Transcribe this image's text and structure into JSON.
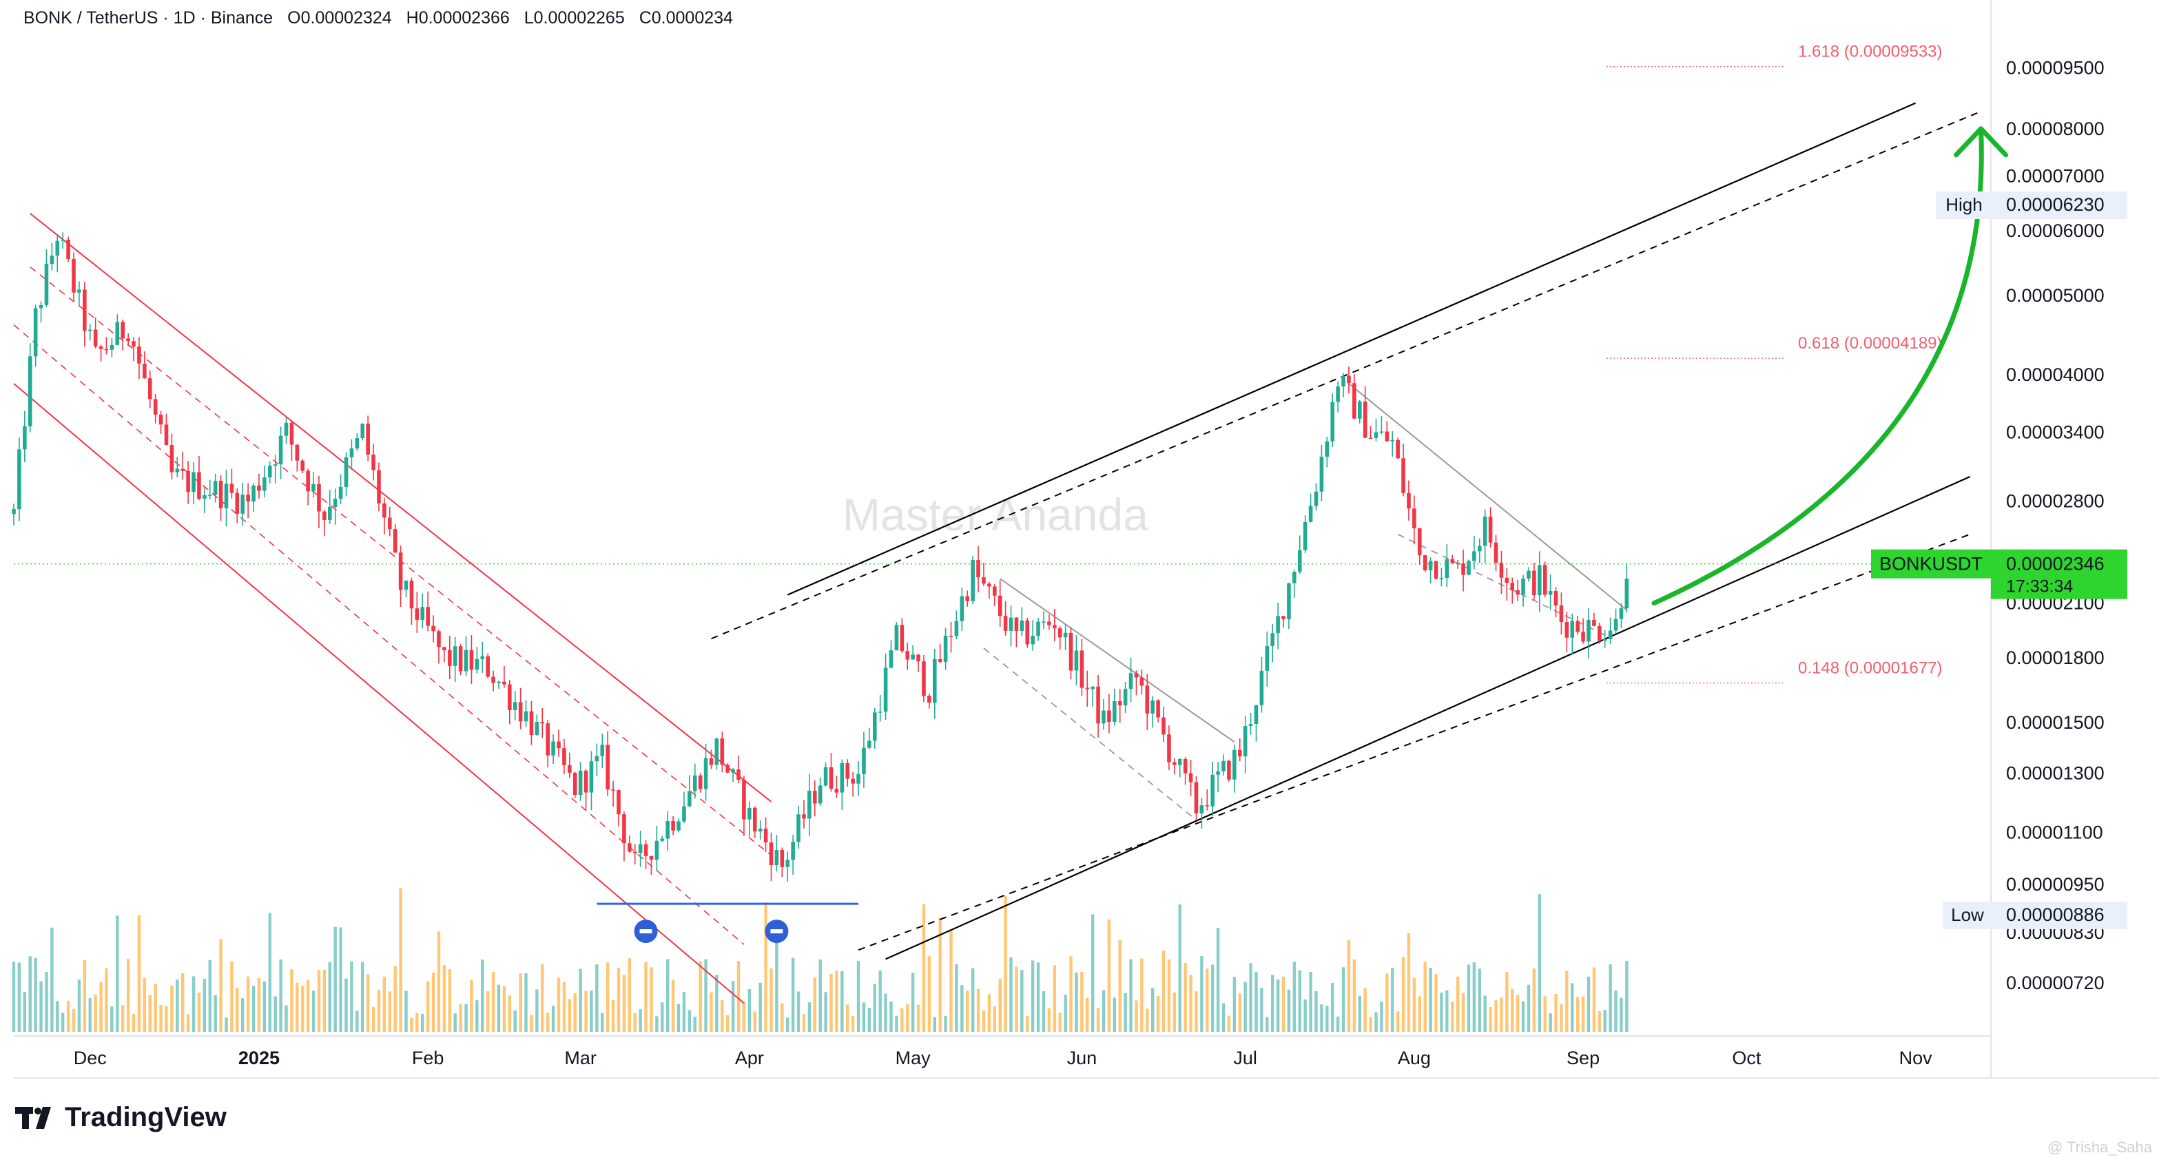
{
  "header": {
    "symbol": "BONK / TetherUS · 1D · Binance",
    "o_label": "O",
    "o_value": "0.00002324",
    "h_label": "H",
    "h_value": "0.00002366",
    "l_label": "L",
    "l_value": "0.00002265",
    "c_label": "C",
    "c_value": "0.0000234"
  },
  "watermark": "Master Ananda",
  "brand": {
    "name": "TradingView"
  },
  "credit": "@ Trisha_Saha",
  "colors": {
    "up": "#22ab94",
    "down": "#f23645",
    "volume_up": "#26a69a",
    "volume_down": "#ff9800",
    "channel_red": "#f23645",
    "channel_black": "#000000",
    "arrow_green": "#19b52b",
    "support_blue": "#2962ff",
    "price_tag": "#2ed52e",
    "fib": "#f23645"
  },
  "price_axis": {
    "ticks": [
      "0.00009500",
      "0.00008000",
      "0.00007000",
      "0.00006000",
      "0.00005000",
      "0.00004000",
      "0.00003400",
      "0.00002800",
      "0.00002100",
      "0.00001800",
      "0.00001500",
      "0.00001300",
      "0.00001100",
      "0.00000950",
      "0.00000830",
      "0.00000720"
    ],
    "high_label": "High",
    "high_value": "0.00006230",
    "low_label": "Low",
    "low_value": "0.00000886",
    "current_symbol": "BONKUSDT",
    "current_value": "0.00002346",
    "countdown": "17:33:34"
  },
  "fib_levels": [
    {
      "label": "1.618 (0.00009533)",
      "value": 9.533e-05
    },
    {
      "label": "0.618 (0.00004189)",
      "value": 4.189e-05
    },
    {
      "label": "0.148 (0.00001677)",
      "value": 1.677e-05
    }
  ],
  "chart_data": {
    "type": "candlestick",
    "scale": "log",
    "ylim": [
      6.2e-06,
      0.000115
    ],
    "x_ticks": [
      "Dec",
      "2025",
      "Feb",
      "Mar",
      "Apr",
      "May",
      "Jun",
      "Jul",
      "Aug",
      "Sep",
      "Oct",
      "Nov"
    ],
    "x_ticks_bold": [
      "2025"
    ],
    "trend": [
      {
        "date": "2024-11-17",
        "price": 2.7e-05
      },
      {
        "date": "2024-11-21",
        "price": 4.7e-05
      },
      {
        "date": "2024-11-25",
        "price": 5.95e-05
      },
      {
        "date": "2024-12-02",
        "price": 4.2e-05
      },
      {
        "date": "2024-12-08",
        "price": 4.6e-05
      },
      {
        "date": "2024-12-16",
        "price": 3e-05
      },
      {
        "date": "2024-12-23",
        "price": 2.9e-05
      },
      {
        "date": "2024-12-30",
        "price": 2.8e-05
      },
      {
        "date": "2025-01-06",
        "price": 3.4e-05
      },
      {
        "date": "2025-01-13",
        "price": 2.7e-05
      },
      {
        "date": "2025-01-20",
        "price": 3.4e-05
      },
      {
        "date": "2025-01-27",
        "price": 2.2e-05
      },
      {
        "date": "2025-02-04",
        "price": 1.8e-05
      },
      {
        "date": "2025-02-12",
        "price": 1.75e-05
      },
      {
        "date": "2025-02-20",
        "price": 1.5e-05
      },
      {
        "date": "2025-02-28",
        "price": 1.25e-05
      },
      {
        "date": "2025-03-05",
        "price": 1.35e-05
      },
      {
        "date": "2025-03-11",
        "price": 1e-05
      },
      {
        "date": "2025-03-18",
        "price": 1.15e-05
      },
      {
        "date": "2025-03-26",
        "price": 1.4e-05
      },
      {
        "date": "2025-04-01",
        "price": 1.15e-05
      },
      {
        "date": "2025-04-07",
        "price": 1e-05
      },
      {
        "date": "2025-04-14",
        "price": 1.28e-05
      },
      {
        "date": "2025-04-21",
        "price": 1.3e-05
      },
      {
        "date": "2025-04-28",
        "price": 1.9e-05
      },
      {
        "date": "2025-05-04",
        "price": 1.65e-05
      },
      {
        "date": "2025-05-12",
        "price": 2.3e-05
      },
      {
        "date": "2025-05-20",
        "price": 1.9e-05
      },
      {
        "date": "2025-05-27",
        "price": 2e-05
      },
      {
        "date": "2025-06-05",
        "price": 1.5e-05
      },
      {
        "date": "2025-06-11",
        "price": 1.7e-05
      },
      {
        "date": "2025-06-22",
        "price": 1.18e-05
      },
      {
        "date": "2025-06-30",
        "price": 1.38e-05
      },
      {
        "date": "2025-07-08",
        "price": 2.1e-05
      },
      {
        "date": "2025-07-14",
        "price": 2.95e-05
      },
      {
        "date": "2025-07-18",
        "price": 3.95e-05
      },
      {
        "date": "2025-07-24",
        "price": 3.4e-05
      },
      {
        "date": "2025-07-28",
        "price": 3.3e-05
      },
      {
        "date": "2025-08-02",
        "price": 2.4e-05
      },
      {
        "date": "2025-08-09",
        "price": 2.3e-05
      },
      {
        "date": "2025-08-14",
        "price": 2.6e-05
      },
      {
        "date": "2025-08-19",
        "price": 2.2e-05
      },
      {
        "date": "2025-08-24",
        "price": 2.25e-05
      },
      {
        "date": "2025-08-28",
        "price": 2e-05
      },
      {
        "date": "2025-09-03",
        "price": 1.95e-05
      },
      {
        "date": "2025-09-07",
        "price": 1.98e-05
      },
      {
        "date": "2025-09-09",
        "price": 2.34e-05
      }
    ],
    "annotations": {
      "red_channel": [
        [
          "2024-11-20",
          6.3e-05,
          "2025-04-05",
          1.2e-05
        ],
        [
          "2024-11-17",
          3.9e-05,
          "2025-03-31",
          6.8e-06
        ]
      ],
      "black_channel": [
        [
          "2025-04-26",
          7.7e-06,
          "2025-11-11",
          3e-05
        ],
        [
          "2025-04-08",
          2.15e-05,
          "2025-11-01",
          8.6e-05
        ]
      ],
      "black_channel_inner": [
        [
          "2025-04-21",
          7.9e-06,
          "2025-11-11",
          2.55e-05
        ],
        [
          "2025-03-25",
          1.9e-05,
          "2025-11-13",
          8.4e-05
        ]
      ],
      "falling_wedges": [
        [
          [
            "2025-05-17",
            2.25e-05,
            "2025-06-29",
            1.42e-05
          ],
          [
            "2025-05-14",
            1.85e-05,
            "2025-06-22",
            1.14e-05
          ]
        ],
        [
          [
            "2025-07-20",
            3.9e-05,
            "2025-09-09",
            2.06e-05
          ],
          [
            "2025-07-29",
            2.55e-05,
            "2025-09-05",
            1.92e-05
          ]
        ]
      ],
      "support_line": {
        "from": "2025-03-04",
        "to": "2025-04-21",
        "price": 9e-06
      },
      "support_markers": [
        "2025-03-13",
        "2025-04-06"
      ],
      "projection_arrow": {
        "from": [
          "2025-09-14",
          2.1e-05
        ],
        "to": [
          "2025-11-13",
          8e-05
        ]
      }
    }
  }
}
